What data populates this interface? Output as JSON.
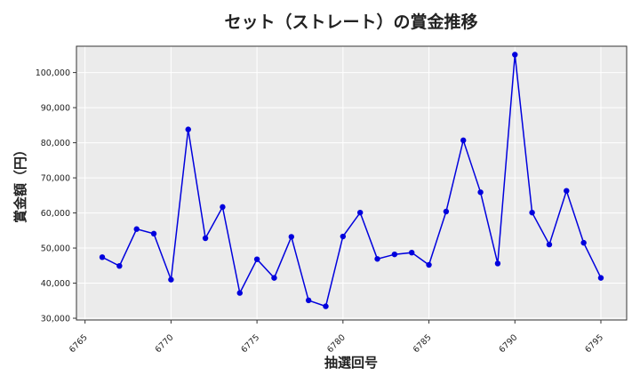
{
  "chart_data": {
    "type": "line",
    "title": "セット（ストレート）の賞金推移",
    "xlabel": "抽選回号",
    "ylabel": "賞金額（円）",
    "xlim": [
      6764.5,
      6796.5
    ],
    "ylim": [
      29500,
      107500
    ],
    "xticks": [
      6765,
      6770,
      6775,
      6780,
      6785,
      6790,
      6795
    ],
    "xtick_labels": [
      "6765",
      "6770",
      "6775",
      "6780",
      "6785",
      "6790",
      "6795"
    ],
    "yticks": [
      30000,
      40000,
      50000,
      60000,
      70000,
      80000,
      90000,
      100000
    ],
    "ytick_labels": [
      "30,000",
      "40,000",
      "50,000",
      "60,000",
      "70,000",
      "80,000",
      "90,000",
      "100,000"
    ],
    "grid": true,
    "color": "#0000dd",
    "x": [
      6766,
      6767,
      6768,
      6769,
      6770,
      6771,
      6772,
      6773,
      6774,
      6775,
      6776,
      6777,
      6778,
      6779,
      6780,
      6781,
      6782,
      6783,
      6784,
      6785,
      6786,
      6787,
      6788,
      6789,
      6790,
      6791,
      6792,
      6793,
      6794,
      6795
    ],
    "y": [
      47400,
      44900,
      55400,
      54100,
      41000,
      83800,
      52800,
      61700,
      37200,
      46800,
      41500,
      53200,
      35100,
      33400,
      53300,
      60100,
      46900,
      48200,
      48700,
      45200,
      60400,
      80700,
      65900,
      45600,
      105100,
      60100,
      51000,
      66300,
      51500,
      41500
    ]
  }
}
